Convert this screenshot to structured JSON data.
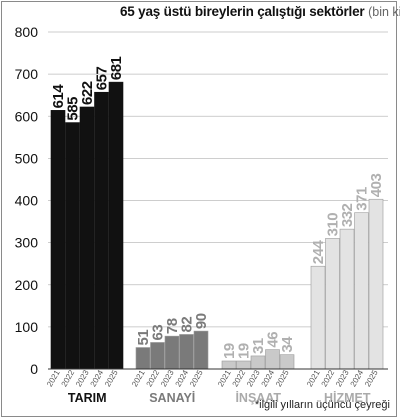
{
  "chart_data": {
    "type": "bar",
    "title": "65 yaş üstü bireylerin çalıştığı sektörler",
    "subtitle": "(bin kişi)",
    "ylim": [
      0,
      800
    ],
    "yticks": [
      0,
      100,
      200,
      300,
      400,
      500,
      600,
      700,
      800
    ],
    "grid": true,
    "groups": [
      {
        "name": "TARIM",
        "color": "#111111",
        "label_color": "#111111",
        "years": [
          "2021",
          "2022",
          "2023",
          "2024",
          "2025"
        ],
        "values": [
          614,
          585,
          622,
          657,
          681
        ]
      },
      {
        "name": "SANAYİ",
        "color": "#7a7a7a",
        "label_color": "#7a7a7a",
        "years": [
          "2021",
          "2022",
          "2023",
          "2024",
          "2025"
        ],
        "values": [
          51,
          63,
          78,
          82,
          90
        ]
      },
      {
        "name": "İNŞAAT",
        "color": "#c9c9c9",
        "label_color": "#b0b0b0",
        "years": [
          "2021",
          "2022",
          "2023",
          "2024",
          "2025"
        ],
        "values": [
          19,
          19,
          31,
          46,
          34
        ]
      },
      {
        "name": "HİZMET",
        "color": "#e3e3e3",
        "label_color": "#b0b0b0",
        "years": [
          "2021",
          "2022",
          "2023",
          "2024",
          "2025"
        ],
        "values": [
          244,
          310,
          332,
          371,
          403
        ]
      }
    ],
    "footnote": "*ilgili yılların üçüncü çeyreği"
  }
}
